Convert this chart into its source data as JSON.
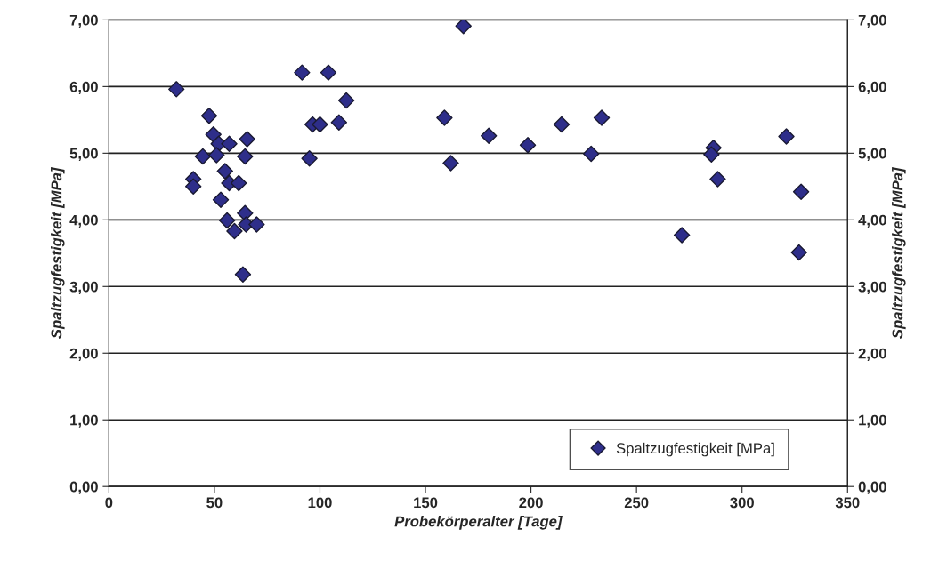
{
  "chart_data": {
    "type": "scatter",
    "xlabel": "Probekörperalter [Tage]",
    "ylabel": "Spaltzugfestigkeit [MPa]",
    "y2label": "Spaltzugfestigkeit [MPa]",
    "xlim": [
      0,
      350
    ],
    "xticks": [
      0,
      50,
      100,
      150,
      200,
      250,
      300,
      350
    ],
    "ylim": [
      0,
      7
    ],
    "yticks": [
      {
        "value": 0,
        "label": "0,00"
      },
      {
        "value": 1,
        "label": "1,00"
      },
      {
        "value": 2,
        "label": "2,00"
      },
      {
        "value": 3,
        "label": "3,00"
      },
      {
        "value": 4,
        "label": "4,00"
      },
      {
        "value": 5,
        "label": "5,00"
      },
      {
        "value": 6,
        "label": "6,00"
      },
      {
        "value": 7,
        "label": "7,00"
      }
    ],
    "y2lim": [
      0,
      7
    ],
    "y2ticks": [
      {
        "value": 0,
        "label": "0,00"
      },
      {
        "value": 1,
        "label": "1,00"
      },
      {
        "value": 2,
        "label": "2,00"
      },
      {
        "value": 3,
        "label": "3,00"
      },
      {
        "value": 4,
        "label": "4,00"
      },
      {
        "value": 5,
        "label": "5,00"
      },
      {
        "value": 6,
        "label": "6,00"
      },
      {
        "value": 7,
        "label": "7,00"
      }
    ],
    "grid": "y",
    "legend": "bottom right",
    "marker": "diamond",
    "series": [
      {
        "name": "Spaltzugfestigkeit [MPa]",
        "color": "#2e2e8a",
        "x": [
          32,
          47.5,
          49.5,
          52,
          57,
          65.5,
          44.5,
          51,
          64.5,
          55,
          40,
          40,
          57,
          61.5,
          53,
          56,
          59.5,
          64.5,
          65,
          70,
          63.5,
          91.5,
          104,
          112.5,
          96.5,
          100,
          109,
          95,
          168,
          159,
          162,
          180,
          198.5,
          214.5,
          233.5,
          228.5,
          271.5,
          286.5,
          285.5,
          288.5,
          321,
          328,
          327
        ],
        "values": [
          5.96,
          5.56,
          5.28,
          5.14,
          5.14,
          5.21,
          4.95,
          4.97,
          4.95,
          4.73,
          4.61,
          4.5,
          4.55,
          4.55,
          4.3,
          3.99,
          3.83,
          4.1,
          3.93,
          3.93,
          3.18,
          6.21,
          6.21,
          5.79,
          5.43,
          5.43,
          5.46,
          4.92,
          6.91,
          5.53,
          4.85,
          5.26,
          5.12,
          5.43,
          5.53,
          4.99,
          3.77,
          5.08,
          4.98,
          4.61,
          5.25,
          4.42,
          3.51
        ]
      }
    ]
  }
}
